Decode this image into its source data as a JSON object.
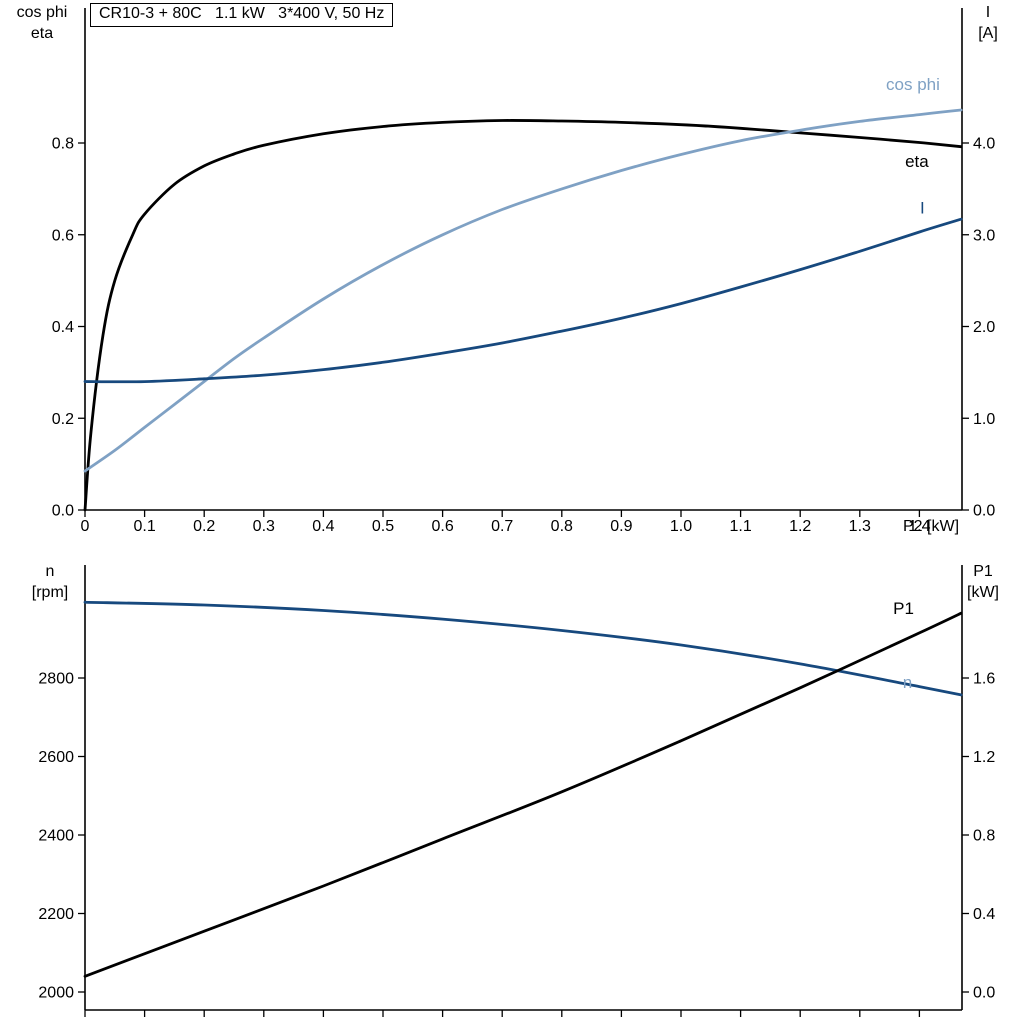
{
  "page": {
    "background": "#ffffff"
  },
  "colors": {
    "eta": "#000000",
    "cos_phi": "#7FA1C4",
    "current": "#17497E",
    "p1": "#000000",
    "n": "#17497E",
    "n_label": "#7FA1C4",
    "axis": "#000000"
  },
  "chart_data": [
    {
      "id": "top",
      "type": "line",
      "title": "CR10-3 + 80C   1.1 kW   3*400 V, 50 Hz",
      "axes": {
        "left": {
          "title": [
            "cos phi",
            "eta"
          ],
          "ticks": [
            "0.0",
            "0.2",
            "0.4",
            "0.6",
            "0.8"
          ],
          "tick_values": [
            0,
            0.2,
            0.4,
            0.6,
            0.8
          ],
          "range": [
            0,
            1.09
          ]
        },
        "right": {
          "title": [
            "I",
            "[A]"
          ],
          "ticks": [
            "0.0",
            "1.0",
            "2.0",
            "3.0",
            "4.0"
          ],
          "tick_values": [
            0,
            1,
            2,
            3,
            4
          ],
          "range": [
            0,
            5.47
          ]
        },
        "x": {
          "title": "P2 [kW]",
          "ticks": [
            "0",
            "0.1",
            "0.2",
            "0.3",
            "0.4",
            "0.5",
            "0.6",
            "0.7",
            "0.8",
            "0.9",
            "1.0",
            "1.1",
            "1.2",
            "1.3",
            "1.4"
          ],
          "tick_values": [
            0,
            0.1,
            0.2,
            0.3,
            0.4,
            0.5,
            0.6,
            0.7,
            0.8,
            0.9,
            1.0,
            1.1,
            1.2,
            1.3,
            1.4
          ],
          "range": [
            0,
            1.472
          ]
        }
      },
      "grid": false,
      "series": [
        {
          "name": "eta",
          "axis": "left",
          "color_key": "eta",
          "label": {
            "text": "eta",
            "x": 1.376,
            "y": 0.748
          },
          "x": [
            0,
            0.01,
            0.03,
            0.05,
            0.08,
            0.1,
            0.15,
            0.2,
            0.25,
            0.3,
            0.4,
            0.5,
            0.6,
            0.7,
            0.8,
            0.9,
            1.0,
            1.1,
            1.2,
            1.3,
            1.4,
            1.47
          ],
          "y": [
            0,
            0.17,
            0.38,
            0.5,
            0.6,
            0.645,
            0.71,
            0.75,
            0.776,
            0.795,
            0.82,
            0.836,
            0.845,
            0.849,
            0.848,
            0.845,
            0.84,
            0.832,
            0.822,
            0.812,
            0.801,
            0.792
          ]
        },
        {
          "name": "cos phi",
          "axis": "left",
          "color_key": "cos_phi",
          "label": {
            "text": "cos phi",
            "x": 1.344,
            "y": 0.916
          },
          "x": [
            0,
            0.05,
            0.1,
            0.15,
            0.2,
            0.25,
            0.3,
            0.4,
            0.5,
            0.6,
            0.7,
            0.8,
            0.9,
            1.0,
            1.1,
            1.2,
            1.3,
            1.4,
            1.47
          ],
          "y": [
            0.085,
            0.13,
            0.18,
            0.23,
            0.28,
            0.33,
            0.375,
            0.46,
            0.535,
            0.6,
            0.655,
            0.7,
            0.74,
            0.775,
            0.805,
            0.828,
            0.847,
            0.862,
            0.872
          ]
        },
        {
          "name": "I",
          "axis": "right",
          "color_key": "current",
          "label": {
            "text": "I",
            "x": 1.401,
            "y": 3.23
          },
          "x": [
            0,
            0.1,
            0.2,
            0.3,
            0.4,
            0.5,
            0.6,
            0.7,
            0.8,
            0.9,
            1.0,
            1.1,
            1.2,
            1.3,
            1.4,
            1.47
          ],
          "y": [
            1.4,
            1.4,
            1.43,
            1.47,
            1.53,
            1.61,
            1.71,
            1.82,
            1.95,
            2.09,
            2.25,
            2.43,
            2.62,
            2.82,
            3.03,
            3.17
          ]
        }
      ]
    },
    {
      "id": "bottom",
      "type": "line",
      "title": "",
      "axes": {
        "left": {
          "title": [
            "n",
            "[rpm]"
          ],
          "ticks": [
            "2000",
            "2200",
            "2400",
            "2600",
            "2800"
          ],
          "tick_values": [
            2000,
            2200,
            2400,
            2600,
            2800
          ],
          "range": [
            1954,
            3088
          ]
        },
        "right": {
          "title": [
            "P1",
            "[kW]"
          ],
          "ticks": [
            "0.0",
            "0.4",
            "0.8",
            "1.2",
            "1.6"
          ],
          "tick_values": [
            0,
            0.4,
            0.8,
            1.2,
            1.6
          ],
          "range": [
            0,
            2.27
          ]
        },
        "x": {
          "title": "",
          "ticks": [],
          "tick_values": [
            0,
            0.1,
            0.2,
            0.3,
            0.4,
            0.5,
            0.6,
            0.7,
            0.8,
            0.9,
            1.0,
            1.1,
            1.2,
            1.3,
            1.4
          ],
          "range": [
            0,
            1.472
          ]
        }
      },
      "grid": false,
      "series": [
        {
          "name": "n",
          "axis": "left",
          "color_key": "n",
          "label_color_key": "n_label",
          "label": {
            "text": "n",
            "x": 1.372,
            "y": 2774
          },
          "x": [
            0,
            0.2,
            0.4,
            0.6,
            0.8,
            1.0,
            1.2,
            1.4,
            1.47
          ],
          "y": [
            2993,
            2986,
            2972,
            2950,
            2921,
            2884,
            2836,
            2778,
            2757
          ]
        },
        {
          "name": "P1",
          "axis": "right",
          "color_key": "p1",
          "label": {
            "text": "P1",
            "x": 1.356,
            "y": 1.926
          },
          "x": [
            0,
            0.2,
            0.4,
            0.6,
            0.8,
            1.0,
            1.2,
            1.4,
            1.47
          ],
          "y": [
            0.08,
            0.31,
            0.54,
            0.78,
            1.02,
            1.28,
            1.55,
            1.83,
            1.93
          ]
        }
      ]
    }
  ]
}
